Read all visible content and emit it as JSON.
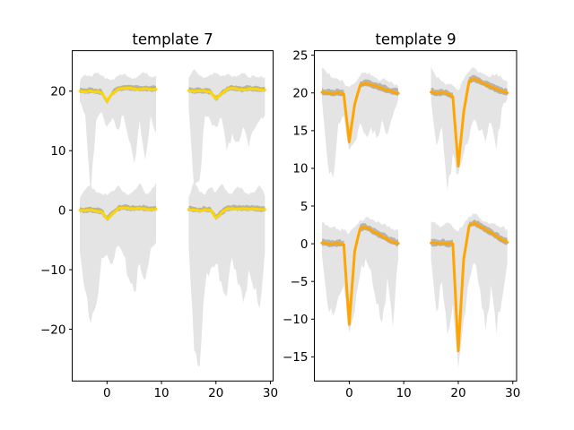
{
  "figure": {
    "background": "#ffffff",
    "spine_color": "#000000",
    "tick_color": "#000000"
  },
  "chart_data": [
    {
      "type": "line",
      "title": "template 7",
      "line_color": "#FFD700",
      "band_color": "#e4e4e4",
      "inner_band_color": "#aaaaaa",
      "xlim": [
        -6.4,
        30.5
      ],
      "ylim": [
        -28.7,
        26.8
      ],
      "xticks": [
        0,
        10,
        20,
        30
      ],
      "yticks": [
        -20,
        -10,
        0,
        10,
        20
      ],
      "grid": false,
      "legend": null,
      "x_step": 1,
      "clusters": [
        {
          "baseline": 20,
          "x_start": -5,
          "mean": [
            20.0,
            19.9,
            20.05,
            19.9,
            19.75,
            18.2,
            19.6,
            20.3,
            20.45,
            20.5,
            20.4,
            20.3,
            20.4,
            20.3,
            20.3
          ],
          "band_top": [
            21.6,
            22.8,
            22.5,
            23.0,
            22.6,
            22.2,
            22.0,
            22.5,
            22.8,
            22.4,
            22.2,
            22.7,
            23.0,
            22.4,
            22.6
          ],
          "band_bottom": [
            18.3,
            16.0,
            2.5,
            15.0,
            16.5,
            14.0,
            15.5,
            13.5,
            16.0,
            11.8,
            7.9,
            15.0,
            8.4,
            15.8,
            13.0
          ]
        },
        {
          "baseline": 20,
          "x_start": 15,
          "mean": [
            20.1,
            19.9,
            20.05,
            20.0,
            19.8,
            18.7,
            19.5,
            20.25,
            20.45,
            20.3,
            20.2,
            20.4,
            20.3,
            20.2,
            20.2
          ],
          "band_top": [
            22.2,
            23.7,
            22.6,
            22.3,
            22.8,
            23.0,
            22.5,
            22.9,
            22.4,
            22.6,
            23.0,
            22.3,
            22.6,
            22.3,
            22.4
          ],
          "band_bottom": [
            17.0,
            3.4,
            5.0,
            15.8,
            15.0,
            14.0,
            15.5,
            10.0,
            13.0,
            11.5,
            14.0,
            10.5,
            13.5,
            15.0,
            16.0
          ]
        },
        {
          "baseline": 0,
          "x_start": -5,
          "mean": [
            0.0,
            -0.1,
            0.05,
            -0.15,
            -0.3,
            -1.5,
            -0.6,
            0.2,
            0.4,
            0.3,
            0.2,
            0.3,
            0.2,
            0.1,
            0.2
          ],
          "band_top": [
            2.0,
            3.5,
            4.0,
            3.0,
            2.8,
            2.5,
            3.2,
            4.2,
            3.0,
            2.6,
            3.4,
            4.5,
            2.8,
            3.2,
            4.6
          ],
          "band_bottom": [
            -7.0,
            -13.5,
            -19.0,
            -16.0,
            -8.0,
            -7.5,
            -9.0,
            -6.0,
            -7.5,
            -11.5,
            -13.8,
            -9.0,
            -11.8,
            -6.5,
            -5.5
          ]
        },
        {
          "baseline": 0,
          "x_start": 15,
          "mean": [
            0.1,
            0.0,
            -0.1,
            0.1,
            0.0,
            -1.3,
            -0.5,
            0.2,
            0.3,
            0.2,
            0.3,
            0.2,
            0.2,
            0.1,
            0.1
          ],
          "band_top": [
            2.2,
            4.8,
            3.0,
            2.6,
            3.8,
            3.0,
            4.4,
            3.2,
            2.8,
            4.0,
            3.4,
            2.6,
            3.0,
            4.2,
            2.4
          ],
          "band_bottom": [
            -6.0,
            -23.5,
            -26.3,
            -13.0,
            -10.0,
            -9.0,
            -12.0,
            -14.5,
            -8.0,
            -12.5,
            -15.5,
            -10.0,
            -13.5,
            -16.5,
            -7.0
          ]
        }
      ]
    },
    {
      "type": "line",
      "title": "template 9",
      "line_color": "#FFA500",
      "band_color": "#e4e4e4",
      "inner_band_color": "#aaaaaa",
      "xlim": [
        -6.4,
        30.7
      ],
      "ylim": [
        -18.2,
        25.6
      ],
      "xticks": [
        0,
        10,
        20,
        30
      ],
      "yticks": [
        -15,
        -10,
        -5,
        0,
        5,
        10,
        15,
        20,
        25
      ],
      "grid": false,
      "legend": null,
      "x_step": 1,
      "clusters": [
        {
          "baseline": 20,
          "x_start": -5,
          "mean": [
            20.1,
            20.0,
            19.9,
            20.0,
            19.85,
            13.5,
            18.5,
            21.0,
            21.25,
            21.05,
            20.85,
            20.55,
            20.3,
            20.1,
            19.95
          ],
          "band_top": [
            23.3,
            22.5,
            22.0,
            21.8,
            21.4,
            20.8,
            21.3,
            22.3,
            22.7,
            22.3,
            22.0,
            21.8,
            21.6,
            21.3,
            20.8
          ],
          "band_bottom": [
            19.0,
            11.0,
            8.7,
            16.0,
            17.0,
            12.4,
            13.5,
            16.0,
            14.5,
            15.5,
            14.0,
            16.5,
            14.5,
            17.0,
            19.3
          ]
        },
        {
          "baseline": 20,
          "x_start": 15,
          "mean": [
            20.1,
            19.9,
            20.0,
            19.85,
            19.5,
            10.3,
            17.5,
            21.55,
            21.8,
            21.45,
            21.1,
            20.75,
            20.45,
            20.2,
            20.0
          ],
          "band_top": [
            23.5,
            22.0,
            21.5,
            21.2,
            21.0,
            20.3,
            21.8,
            22.8,
            23.3,
            22.8,
            22.4,
            22.2,
            22.6,
            22.0,
            21.5
          ],
          "band_bottom": [
            19.0,
            13.0,
            15.5,
            7.0,
            12.0,
            9.2,
            12.0,
            14.0,
            16.5,
            15.0,
            13.5,
            16.0,
            12.5,
            18.0,
            19.2
          ]
        },
        {
          "baseline": 0,
          "x_start": -5,
          "mean": [
            0.1,
            0.0,
            -0.05,
            0.0,
            -0.1,
            -10.7,
            -1.0,
            2.0,
            2.15,
            1.75,
            1.35,
            0.95,
            0.55,
            0.25,
            0.05
          ],
          "band_top": [
            2.8,
            2.5,
            2.2,
            2.0,
            1.8,
            1.4,
            2.2,
            3.2,
            3.5,
            3.2,
            2.8,
            2.5,
            2.2,
            2.0,
            1.8
          ],
          "band_bottom": [
            -1.5,
            -8.0,
            -9.5,
            -7.0,
            -5.5,
            -11.8,
            -9.0,
            -4.0,
            -2.0,
            -3.5,
            -8.0,
            -10.5,
            -4.5,
            -11.0,
            -2.0
          ]
        },
        {
          "baseline": 0,
          "x_start": 15,
          "mean": [
            0.1,
            0.0,
            0.05,
            -0.1,
            0.0,
            -14.2,
            -2.0,
            2.4,
            2.7,
            2.25,
            1.85,
            1.45,
            1.0,
            0.5,
            0.2
          ],
          "band_top": [
            3.0,
            2.6,
            2.3,
            2.8,
            2.2,
            1.6,
            2.6,
            3.6,
            3.9,
            3.4,
            3.0,
            2.7,
            2.4,
            2.2,
            2.0
          ],
          "band_bottom": [
            -2.0,
            -9.0,
            -5.0,
            -12.0,
            -8.0,
            -16.5,
            -10.0,
            -5.0,
            -2.5,
            -6.0,
            -11.5,
            -5.5,
            -12.0,
            -7.5,
            -2.5
          ]
        }
      ]
    }
  ],
  "noise_seed": 7
}
